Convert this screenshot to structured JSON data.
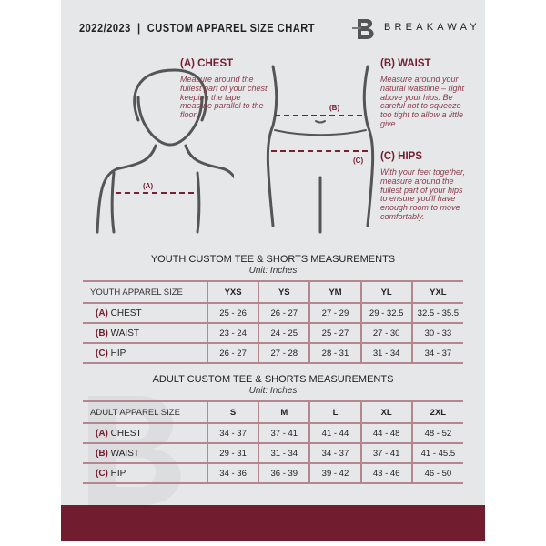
{
  "header": {
    "title": "2022/2023  |  CUSTOM APPAREL SIZE CHART",
    "brand": "BREAKAWAY"
  },
  "guides": {
    "chest": {
      "heading": "(A) CHEST",
      "text": "Measure around the fullest part of your chest, keeping the tape measure parallel to the floor",
      "marker": "(A)"
    },
    "waist": {
      "heading": "(B) WAIST",
      "text": "Measure around your natural waistline – right above your hips. Be careful not to squeeze too tight to allow a little give.",
      "marker": "(B)"
    },
    "hips": {
      "heading": "(C) HIPS",
      "text": "With your feet together, measure around the fullest part of your hips to ensure you'll have enough room to move comfortably.",
      "marker": "(C)"
    }
  },
  "youth": {
    "title": "YOUTH CUSTOM TEE & SHORTS MEASUREMENTS",
    "unit": "Unit: Inches",
    "header": "YOUTH APPAREL SIZE",
    "sizes": [
      "YXS",
      "YS",
      "YM",
      "YL",
      "YXL"
    ],
    "rows": [
      {
        "letter": "(A)",
        "label": "CHEST",
        "values": [
          "25 - 26",
          "26 - 27",
          "27 - 29",
          "29 - 32.5",
          "32.5 - 35.5"
        ]
      },
      {
        "letter": "(B)",
        "label": "WAIST",
        "values": [
          "23 - 24",
          "24 - 25",
          "25 - 27",
          "27 - 30",
          "30 - 33"
        ]
      },
      {
        "letter": "(C)",
        "label": "HIP",
        "values": [
          "26 - 27",
          "27 - 28",
          "28 - 31",
          "31 - 34",
          "34 - 37"
        ]
      }
    ]
  },
  "adult": {
    "title": "ADULT CUSTOM TEE & SHORTS MEASUREMENTS",
    "unit": "Unit: Inches",
    "header": "ADULT APPAREL SIZE",
    "sizes": [
      "S",
      "M",
      "L",
      "XL",
      "2XL"
    ],
    "rows": [
      {
        "letter": "(A)",
        "label": "CHEST",
        "values": [
          "34 - 37",
          "37 - 41",
          "41 - 44",
          "44 - 48",
          "48 - 52"
        ]
      },
      {
        "letter": "(B)",
        "label": "WAIST",
        "values": [
          "29 - 31",
          "31 - 34",
          "34 - 37",
          "37 - 41",
          "41 - 45.5"
        ]
      },
      {
        "letter": "(C)",
        "label": "HIP",
        "values": [
          "34 - 36",
          "36 - 39",
          "39 - 42",
          "43 - 46",
          "46 - 50"
        ]
      }
    ]
  },
  "colors": {
    "accent": "#721c2f",
    "background": "#e6e7e9"
  }
}
